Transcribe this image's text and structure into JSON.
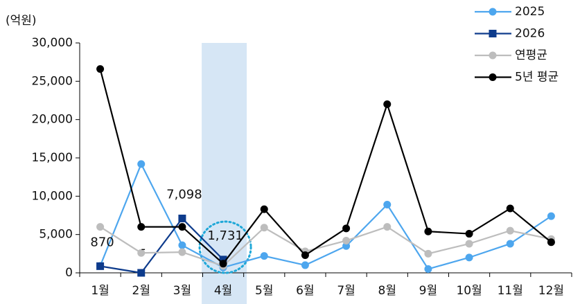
{
  "chart_data": {
    "type": "line",
    "unit_label": "(억원)",
    "categories": [
      "1월",
      "2월",
      "3월",
      "4월",
      "5월",
      "6월",
      "7월",
      "8월",
      "9월",
      "10월",
      "11월",
      "12월"
    ],
    "highlight_category": "4월",
    "ylim": [
      0,
      30000
    ],
    "yticks": [
      0,
      {
        "value": 5000,
        "label": "5,000"
      },
      {
        "value": 10000,
        "label": "10,000"
      },
      {
        "value": 15000,
        "label": "15,000"
      },
      {
        "value": 20000,
        "label": "20,000"
      },
      {
        "value": 25000,
        "label": "25,000"
      },
      {
        "value": 30000,
        "label": "30,000"
      }
    ],
    "series": [
      {
        "name": "2025",
        "color": "#4da6ee",
        "marker": "circle",
        "values": [
          900,
          14200,
          3600,
          700,
          2200,
          1000,
          3500,
          8900,
          500,
          2000,
          3800,
          7400
        ]
      },
      {
        "name": "2026",
        "color": "#0d3b8c",
        "marker": "square",
        "values": [
          870,
          0,
          7098,
          1731,
          null,
          null,
          null,
          null,
          null,
          null,
          null,
          null
        ],
        "value_labels": [
          "870",
          "-",
          "7,098",
          "1,731",
          null,
          null,
          null,
          null,
          null,
          null,
          null,
          null
        ]
      },
      {
        "name": "연평균",
        "color": "#bdbdbd",
        "marker": "circle",
        "values": [
          6000,
          2600,
          2700,
          900,
          5900,
          2800,
          4200,
          6000,
          2500,
          3800,
          5500,
          4400
        ]
      },
      {
        "name": "5년 평균",
        "color": "#000000",
        "marker": "circle",
        "values": [
          26600,
          6000,
          6000,
          1200,
          8300,
          2300,
          5800,
          22000,
          5400,
          5100,
          8400,
          4000
        ]
      }
    ]
  }
}
